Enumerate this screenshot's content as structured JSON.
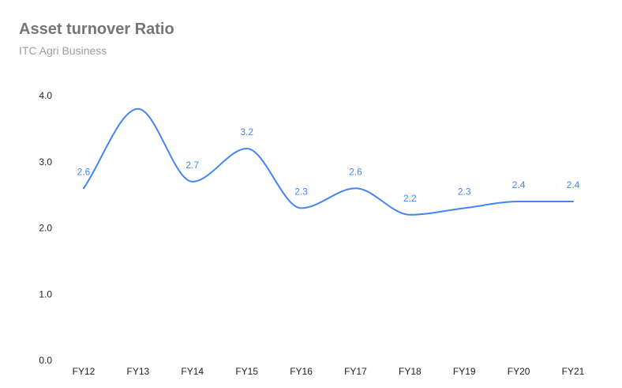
{
  "chart_data": {
    "type": "line",
    "title": "Asset turnover Ratio",
    "subtitle": "ITC Agri Business",
    "categories": [
      "FY12",
      "FY13",
      "FY14",
      "FY15",
      "FY16",
      "FY17",
      "FY18",
      "FY19",
      "FY20",
      "FY21"
    ],
    "series": [
      {
        "values": [
          2.6,
          3.8,
          2.7,
          3.2,
          2.3,
          2.6,
          2.2,
          2.3,
          2.4,
          2.4
        ],
        "data_labels": [
          "2.6",
          "",
          "2.7",
          "3.2",
          "2.3",
          "2.6",
          "2.2",
          "2.3",
          "2.4",
          "2.4"
        ],
        "color": "#4285f4"
      }
    ],
    "y_ticks": [
      "0.0",
      "1.0",
      "2.0",
      "3.0",
      "4.0"
    ],
    "ylim": [
      0,
      4
    ],
    "xlabel": "",
    "ylabel": "",
    "grid": false,
    "smooth": true,
    "legend": "none"
  }
}
